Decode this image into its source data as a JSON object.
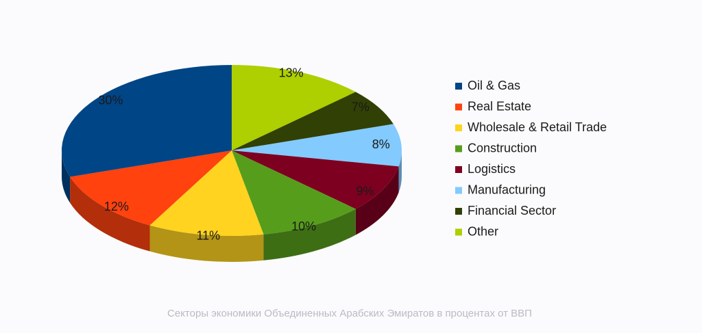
{
  "chart_data": {
    "type": "pie3d",
    "categories": [
      "Oil & Gas",
      "Real Estate",
      "Wholesale & Retail Trade",
      "Construction",
      "Logistics",
      "Manufacturing",
      "Financial Sector",
      "Other"
    ],
    "values": [
      30,
      12,
      11,
      10,
      9,
      8,
      7,
      13
    ],
    "value_labels": [
      "30%",
      "12%",
      "11%",
      "10%",
      "9%",
      "8%",
      "7%",
      "13%"
    ],
    "colors": [
      "#004586",
      "#ff420e",
      "#ffd320",
      "#579d1c",
      "#7e0021",
      "#83caff",
      "#314004",
      "#aecf00"
    ],
    "legend": "right",
    "caption": "Секторы экономики Объединенных Арабских Эмиратов в процентах от ВВП"
  }
}
